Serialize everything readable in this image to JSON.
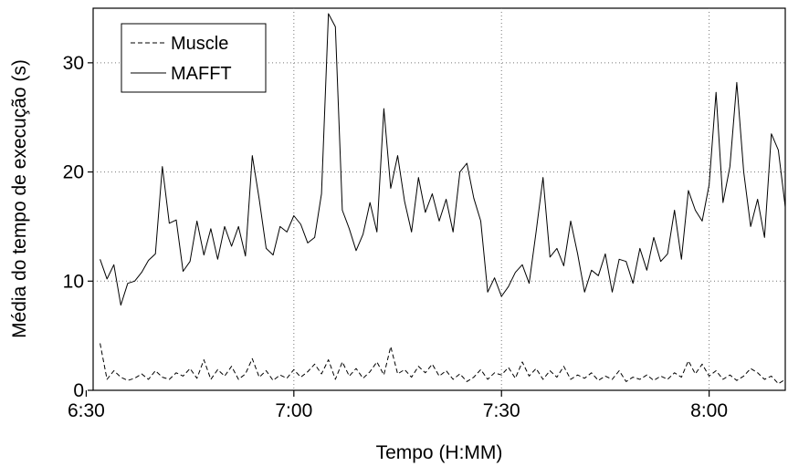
{
  "chart_data": {
    "type": "line",
    "xlabel": "Tempo (H:MM)",
    "ylabel": "Média do tempo de execução (s)",
    "x_unit": "time of day (H:MM)",
    "xlim": [
      "6:31",
      "8:11"
    ],
    "ylim": [
      0,
      35
    ],
    "x_ticks": [
      "6:30",
      "7:00",
      "7:30",
      "8:00"
    ],
    "y_ticks": [
      0,
      10,
      20,
      30
    ],
    "grid": true,
    "legend_position": "top-left",
    "series": [
      {
        "name": "Muscle",
        "style": "dashed",
        "color": "#000000",
        "points": [
          [
            "6:32",
            4.3
          ],
          [
            "6:33",
            1.0
          ],
          [
            "6:34",
            1.8
          ],
          [
            "6:35",
            1.2
          ],
          [
            "6:36",
            0.9
          ],
          [
            "6:37",
            1.1
          ],
          [
            "6:38",
            1.5
          ],
          [
            "6:39",
            1.0
          ],
          [
            "6:40",
            1.8
          ],
          [
            "6:41",
            1.2
          ],
          [
            "6:42",
            1.0
          ],
          [
            "6:43",
            1.6
          ],
          [
            "6:44",
            1.3
          ],
          [
            "6:45",
            2.0
          ],
          [
            "6:46",
            1.1
          ],
          [
            "6:47",
            2.8
          ],
          [
            "6:48",
            1.0
          ],
          [
            "6:49",
            1.9
          ],
          [
            "6:50",
            1.3
          ],
          [
            "6:51",
            2.2
          ],
          [
            "6:52",
            1.0
          ],
          [
            "6:53",
            1.5
          ],
          [
            "6:54",
            2.9
          ],
          [
            "6:55",
            1.2
          ],
          [
            "6:56",
            1.8
          ],
          [
            "6:57",
            0.9
          ],
          [
            "6:58",
            1.4
          ],
          [
            "6:59",
            1.1
          ],
          [
            "7:00",
            1.9
          ],
          [
            "7:01",
            1.2
          ],
          [
            "7:02",
            1.7
          ],
          [
            "7:03",
            2.4
          ],
          [
            "7:04",
            1.5
          ],
          [
            "7:05",
            2.8
          ],
          [
            "7:06",
            1.0
          ],
          [
            "7:07",
            2.6
          ],
          [
            "7:08",
            1.3
          ],
          [
            "7:09",
            2.0
          ],
          [
            "7:10",
            1.1
          ],
          [
            "7:11",
            1.7
          ],
          [
            "7:12",
            2.6
          ],
          [
            "7:13",
            1.4
          ],
          [
            "7:14",
            4.0
          ],
          [
            "7:15",
            1.5
          ],
          [
            "7:16",
            1.9
          ],
          [
            "7:17",
            1.2
          ],
          [
            "7:18",
            2.2
          ],
          [
            "7:19",
            1.6
          ],
          [
            "7:20",
            2.4
          ],
          [
            "7:21",
            1.3
          ],
          [
            "7:22",
            1.8
          ],
          [
            "7:23",
            1.0
          ],
          [
            "7:24",
            1.5
          ],
          [
            "7:25",
            0.8
          ],
          [
            "7:26",
            1.2
          ],
          [
            "7:27",
            1.9
          ],
          [
            "7:28",
            1.0
          ],
          [
            "7:29",
            1.6
          ],
          [
            "7:30",
            1.4
          ],
          [
            "7:31",
            2.1
          ],
          [
            "7:32",
            1.1
          ],
          [
            "7:33",
            2.6
          ],
          [
            "7:34",
            1.3
          ],
          [
            "7:35",
            2.0
          ],
          [
            "7:36",
            1.0
          ],
          [
            "7:37",
            1.8
          ],
          [
            "7:38",
            1.2
          ],
          [
            "7:39",
            2.2
          ],
          [
            "7:40",
            1.0
          ],
          [
            "7:41",
            1.4
          ],
          [
            "7:42",
            1.1
          ],
          [
            "7:43",
            1.6
          ],
          [
            "7:44",
            0.9
          ],
          [
            "7:45",
            1.3
          ],
          [
            "7:46",
            1.0
          ],
          [
            "7:47",
            1.8
          ],
          [
            "7:48",
            0.8
          ],
          [
            "7:49",
            1.2
          ],
          [
            "7:50",
            1.0
          ],
          [
            "7:51",
            1.4
          ],
          [
            "7:52",
            0.9
          ],
          [
            "7:53",
            1.3
          ],
          [
            "7:54",
            1.0
          ],
          [
            "7:55",
            1.6
          ],
          [
            "7:56",
            1.2
          ],
          [
            "7:57",
            2.7
          ],
          [
            "7:58",
            1.5
          ],
          [
            "7:59",
            2.4
          ],
          [
            "8:00",
            1.3
          ],
          [
            "8:01",
            1.8
          ],
          [
            "8:02",
            1.0
          ],
          [
            "8:03",
            1.4
          ],
          [
            "8:04",
            0.9
          ],
          [
            "8:05",
            1.3
          ],
          [
            "8:06",
            2.0
          ],
          [
            "8:07",
            1.6
          ],
          [
            "8:08",
            1.0
          ],
          [
            "8:09",
            1.3
          ],
          [
            "8:10",
            0.6
          ],
          [
            "8:11",
            1.0
          ]
        ]
      },
      {
        "name": "MAFFT",
        "style": "solid",
        "color": "#000000",
        "points": [
          [
            "6:32",
            12.0
          ],
          [
            "6:33",
            10.2
          ],
          [
            "6:34",
            11.5
          ],
          [
            "6:35",
            7.8
          ],
          [
            "6:36",
            9.8
          ],
          [
            "6:37",
            10.0
          ],
          [
            "6:38",
            10.8
          ],
          [
            "6:39",
            11.9
          ],
          [
            "6:40",
            12.5
          ],
          [
            "6:41",
            20.5
          ],
          [
            "6:42",
            15.3
          ],
          [
            "6:43",
            15.6
          ],
          [
            "6:44",
            10.9
          ],
          [
            "6:45",
            11.8
          ],
          [
            "6:46",
            15.5
          ],
          [
            "6:47",
            12.4
          ],
          [
            "6:48",
            14.8
          ],
          [
            "6:49",
            12.0
          ],
          [
            "6:50",
            15.0
          ],
          [
            "6:51",
            13.2
          ],
          [
            "6:52",
            15.0
          ],
          [
            "6:53",
            12.3
          ],
          [
            "6:54",
            21.5
          ],
          [
            "6:55",
            17.5
          ],
          [
            "6:56",
            13.0
          ],
          [
            "6:57",
            12.4
          ],
          [
            "6:58",
            15.0
          ],
          [
            "6:59",
            14.5
          ],
          [
            "7:00",
            16.0
          ],
          [
            "7:01",
            15.2
          ],
          [
            "7:02",
            13.5
          ],
          [
            "7:03",
            14.0
          ],
          [
            "7:04",
            18.0
          ],
          [
            "7:05",
            34.5
          ],
          [
            "7:06",
            33.3
          ],
          [
            "7:07",
            16.5
          ],
          [
            "7:08",
            14.8
          ],
          [
            "7:09",
            12.8
          ],
          [
            "7:10",
            14.3
          ],
          [
            "7:11",
            17.2
          ],
          [
            "7:12",
            14.5
          ],
          [
            "7:13",
            25.8
          ],
          [
            "7:14",
            18.5
          ],
          [
            "7:15",
            21.5
          ],
          [
            "7:16",
            17.3
          ],
          [
            "7:17",
            14.5
          ],
          [
            "7:18",
            19.5
          ],
          [
            "7:19",
            16.3
          ],
          [
            "7:20",
            18.0
          ],
          [
            "7:21",
            15.5
          ],
          [
            "7:22",
            17.5
          ],
          [
            "7:23",
            14.5
          ],
          [
            "7:24",
            20.0
          ],
          [
            "7:25",
            20.8
          ],
          [
            "7:26",
            17.6
          ],
          [
            "7:27",
            15.5
          ],
          [
            "7:28",
            9.0
          ],
          [
            "7:29",
            10.3
          ],
          [
            "7:30",
            8.6
          ],
          [
            "7:31",
            9.5
          ],
          [
            "7:32",
            10.8
          ],
          [
            "7:33",
            11.5
          ],
          [
            "7:34",
            9.8
          ],
          [
            "7:35",
            14.5
          ],
          [
            "7:36",
            19.5
          ],
          [
            "7:37",
            12.2
          ],
          [
            "7:38",
            13.0
          ],
          [
            "7:39",
            11.4
          ],
          [
            "7:40",
            15.5
          ],
          [
            "7:41",
            12.5
          ],
          [
            "7:42",
            9.0
          ],
          [
            "7:43",
            11.0
          ],
          [
            "7:44",
            10.5
          ],
          [
            "7:45",
            12.5
          ],
          [
            "7:46",
            9.0
          ],
          [
            "7:47",
            12.0
          ],
          [
            "7:48",
            11.8
          ],
          [
            "7:49",
            9.8
          ],
          [
            "7:50",
            13.0
          ],
          [
            "7:51",
            11.0
          ],
          [
            "7:52",
            14.0
          ],
          [
            "7:53",
            11.8
          ],
          [
            "7:54",
            12.5
          ],
          [
            "7:55",
            16.5
          ],
          [
            "7:56",
            12.0
          ],
          [
            "7:57",
            18.3
          ],
          [
            "7:58",
            16.5
          ],
          [
            "7:59",
            15.5
          ],
          [
            "8:00",
            18.8
          ],
          [
            "8:01",
            27.3
          ],
          [
            "8:02",
            17.2
          ],
          [
            "8:03",
            20.5
          ],
          [
            "8:04",
            28.2
          ],
          [
            "8:05",
            20.0
          ],
          [
            "8:06",
            15.0
          ],
          [
            "8:07",
            17.5
          ],
          [
            "8:08",
            14.0
          ],
          [
            "8:09",
            23.5
          ],
          [
            "8:10",
            22.0
          ],
          [
            "8:11",
            16.8
          ]
        ]
      }
    ]
  }
}
